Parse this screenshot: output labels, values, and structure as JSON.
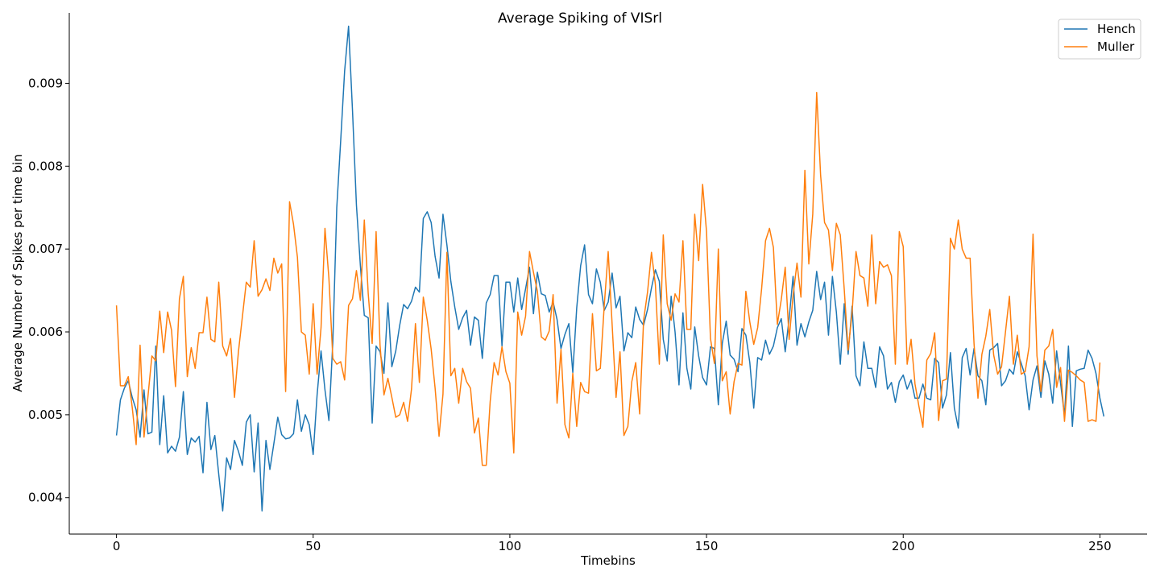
{
  "chart_data": {
    "type": "line",
    "title": "Average Spiking of VISrl",
    "xlabel": "Timebins",
    "ylabel": "Average Number of Spikes per time bin",
    "xlim": [
      -12,
      262
    ],
    "ylim": [
      0.00356,
      0.00985
    ],
    "xticks": [
      0,
      50,
      100,
      150,
      200,
      250
    ],
    "yticks": [
      0.004,
      0.005,
      0.006,
      0.007,
      0.008,
      0.009
    ],
    "ytick_labels": [
      "0.004",
      "0.005",
      "0.006",
      "0.007",
      "0.008",
      "0.009"
    ],
    "grid": false,
    "legend_position": "top-right",
    "series": [
      {
        "name": "Hench",
        "color": "#1f77b4",
        "values": [
          0.00475,
          0.00518,
          0.00532,
          0.00541,
          0.00521,
          0.00506,
          0.00473,
          0.0053,
          0.00477,
          0.00479,
          0.00583,
          0.00464,
          0.00523,
          0.00454,
          0.00462,
          0.00456,
          0.00473,
          0.00528,
          0.00452,
          0.00472,
          0.00467,
          0.00474,
          0.0043,
          0.00515,
          0.00458,
          0.00475,
          0.00428,
          0.00384,
          0.00448,
          0.00434,
          0.00469,
          0.00456,
          0.00439,
          0.00491,
          0.005,
          0.00431,
          0.0049,
          0.00384,
          0.00469,
          0.00434,
          0.00465,
          0.00497,
          0.00476,
          0.00471,
          0.00472,
          0.00477,
          0.00518,
          0.0048,
          0.005,
          0.00488,
          0.00452,
          0.00524,
          0.00577,
          0.0053,
          0.00493,
          0.00588,
          0.0075,
          0.00831,
          0.00915,
          0.00969,
          0.00867,
          0.00753,
          0.0068,
          0.0062,
          0.00617,
          0.0049,
          0.00583,
          0.00576,
          0.0055,
          0.00635,
          0.00558,
          0.00577,
          0.00608,
          0.00633,
          0.00628,
          0.00637,
          0.00654,
          0.00648,
          0.00737,
          0.00745,
          0.00732,
          0.00691,
          0.00665,
          0.00742,
          0.00705,
          0.00661,
          0.0063,
          0.00603,
          0.00617,
          0.00626,
          0.00584,
          0.00618,
          0.00614,
          0.00568,
          0.00635,
          0.00645,
          0.00668,
          0.00668,
          0.00583,
          0.0066,
          0.0066,
          0.00624,
          0.00665,
          0.00627,
          0.00652,
          0.00678,
          0.00622,
          0.00672,
          0.00646,
          0.00644,
          0.00624,
          0.00636,
          0.00615,
          0.0058,
          0.00597,
          0.0061,
          0.00551,
          0.00629,
          0.0068,
          0.00705,
          0.00645,
          0.00634,
          0.00676,
          0.0066,
          0.00626,
          0.00636,
          0.00671,
          0.00629,
          0.00643,
          0.00577,
          0.00599,
          0.00593,
          0.0063,
          0.00615,
          0.00608,
          0.00627,
          0.00653,
          0.00675,
          0.00661,
          0.00591,
          0.00565,
          0.00643,
          0.006,
          0.00536,
          0.00623,
          0.00556,
          0.00531,
          0.00606,
          0.00571,
          0.00545,
          0.00536,
          0.00582,
          0.0058,
          0.00512,
          0.00586,
          0.00613,
          0.00572,
          0.00567,
          0.00552,
          0.00604,
          0.00596,
          0.00563,
          0.00508,
          0.00569,
          0.00566,
          0.0059,
          0.00573,
          0.00583,
          0.00605,
          0.00616,
          0.00576,
          0.00616,
          0.00667,
          0.00584,
          0.0061,
          0.00594,
          0.00612,
          0.00626,
          0.00673,
          0.00639,
          0.0066,
          0.00596,
          0.00667,
          0.00624,
          0.00561,
          0.00634,
          0.00573,
          0.00631,
          0.00547,
          0.00535,
          0.00588,
          0.00556,
          0.00556,
          0.00533,
          0.00582,
          0.00571,
          0.00531,
          0.00539,
          0.00515,
          0.0054,
          0.00548,
          0.00531,
          0.00542,
          0.0052,
          0.0052,
          0.00537,
          0.0052,
          0.00518,
          0.00568,
          0.00563,
          0.00508,
          0.00524,
          0.00575,
          0.00508,
          0.00484,
          0.00569,
          0.0058,
          0.00548,
          0.0058,
          0.00547,
          0.00541,
          0.00512,
          0.00578,
          0.00581,
          0.00586,
          0.00535,
          0.00541,
          0.00555,
          0.00549,
          0.00576,
          0.00562,
          0.00547,
          0.00506,
          0.00542,
          0.00559,
          0.00521,
          0.00565,
          0.00549,
          0.00514,
          0.00577,
          0.00538,
          0.00499,
          0.00583,
          0.00486,
          0.00553,
          0.00555,
          0.00556,
          0.00578,
          0.00568,
          0.0055,
          0.0052,
          0.00498
        ]
      },
      {
        "name": "Muller",
        "color": "#ff7f0e",
        "values": [
          0.00632,
          0.00535,
          0.00535,
          0.00546,
          0.00509,
          0.00464,
          0.00584,
          0.00473,
          0.00522,
          0.00571,
          0.00565,
          0.00625,
          0.00575,
          0.00624,
          0.00602,
          0.00534,
          0.0064,
          0.00667,
          0.00546,
          0.00581,
          0.00556,
          0.00599,
          0.00599,
          0.00642,
          0.00591,
          0.00588,
          0.0066,
          0.00583,
          0.00571,
          0.00592,
          0.00521,
          0.00576,
          0.00618,
          0.0066,
          0.00654,
          0.0071,
          0.00643,
          0.00651,
          0.00664,
          0.0065,
          0.00689,
          0.00671,
          0.00682,
          0.00528,
          0.00757,
          0.0073,
          0.0069,
          0.006,
          0.00596,
          0.00549,
          0.00634,
          0.00549,
          0.00605,
          0.00725,
          0.00665,
          0.00568,
          0.00561,
          0.00564,
          0.00542,
          0.00632,
          0.0064,
          0.00674,
          0.00638,
          0.00735,
          0.00646,
          0.00586,
          0.00721,
          0.00584,
          0.00524,
          0.00544,
          0.00521,
          0.00497,
          0.005,
          0.00515,
          0.00492,
          0.00531,
          0.0061,
          0.00539,
          0.00642,
          0.00614,
          0.00579,
          0.00532,
          0.00474,
          0.00525,
          0.00696,
          0.00547,
          0.00556,
          0.00514,
          0.00556,
          0.0054,
          0.00532,
          0.00478,
          0.00496,
          0.00439,
          0.00439,
          0.00516,
          0.00563,
          0.00548,
          0.00582,
          0.00552,
          0.00538,
          0.00454,
          0.00624,
          0.00596,
          0.00619,
          0.00697,
          0.00672,
          0.00649,
          0.00594,
          0.0059,
          0.00601,
          0.00645,
          0.00514,
          0.00579,
          0.00488,
          0.00472,
          0.0055,
          0.00486,
          0.00539,
          0.00528,
          0.00526,
          0.00622,
          0.00553,
          0.00556,
          0.00632,
          0.00697,
          0.00609,
          0.00521,
          0.00576,
          0.00475,
          0.00486,
          0.0054,
          0.00563,
          0.00501,
          0.00614,
          0.00648,
          0.00696,
          0.00657,
          0.00561,
          0.00717,
          0.00634,
          0.00614,
          0.00646,
          0.00636,
          0.0071,
          0.00603,
          0.00603,
          0.00742,
          0.00686,
          0.00778,
          0.00721,
          0.00592,
          0.00562,
          0.007,
          0.00541,
          0.00552,
          0.00501,
          0.0054,
          0.00562,
          0.0056,
          0.00649,
          0.00612,
          0.00585,
          0.00605,
          0.00652,
          0.0071,
          0.00725,
          0.00702,
          0.00609,
          0.00639,
          0.00678,
          0.00591,
          0.00644,
          0.00683,
          0.00642,
          0.00795,
          0.00682,
          0.00742,
          0.00889,
          0.00789,
          0.00732,
          0.00723,
          0.00674,
          0.00731,
          0.00717,
          0.00652,
          0.00578,
          0.00623,
          0.00697,
          0.00668,
          0.00665,
          0.00631,
          0.00717,
          0.00634,
          0.00685,
          0.00678,
          0.00681,
          0.00668,
          0.00561,
          0.00721,
          0.00703,
          0.00561,
          0.00591,
          0.00537,
          0.0051,
          0.00485,
          0.00566,
          0.00574,
          0.00599,
          0.00493,
          0.00541,
          0.00543,
          0.00713,
          0.007,
          0.00735,
          0.007,
          0.00689,
          0.00689,
          0.00586,
          0.0052,
          0.00573,
          0.00595,
          0.00627,
          0.00572,
          0.00549,
          0.00558,
          0.006,
          0.00643,
          0.00561,
          0.00596,
          0.00549,
          0.00552,
          0.00582,
          0.00718,
          0.00571,
          0.00528,
          0.00578,
          0.00583,
          0.00603,
          0.00533,
          0.00557,
          0.00492,
          0.00554,
          0.00551,
          0.00547,
          0.00542,
          0.00539,
          0.00492,
          0.00494,
          0.00492,
          0.00563
        ]
      }
    ]
  }
}
